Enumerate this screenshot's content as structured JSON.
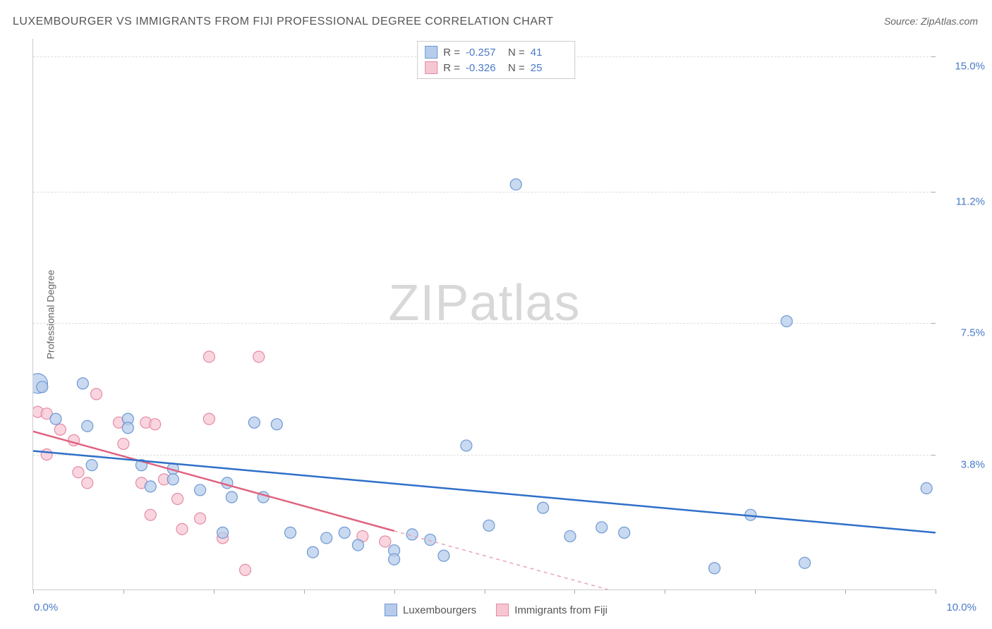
{
  "title": "LUXEMBOURGER VS IMMIGRANTS FROM FIJI PROFESSIONAL DEGREE CORRELATION CHART",
  "source_label": "Source: ",
  "source_name": "ZipAtlas.com",
  "y_axis_label": "Professional Degree",
  "watermark_a": "ZIP",
  "watermark_b": "atlas",
  "x_axis": {
    "min": 0.0,
    "max": 10.0,
    "left_label": "0.0%",
    "right_label": "10.0%",
    "tick_positions": [
      0,
      1,
      2,
      3,
      4,
      5,
      6,
      7,
      8,
      9,
      10
    ]
  },
  "y_axis": {
    "min": 0.0,
    "max": 15.5,
    "gridlines": [
      {
        "value": 3.8,
        "label": "3.8%"
      },
      {
        "value": 7.5,
        "label": "7.5%"
      },
      {
        "value": 11.2,
        "label": "11.2%"
      },
      {
        "value": 15.0,
        "label": "15.0%"
      }
    ]
  },
  "top_legend": [
    {
      "color_fill": "#b7cceb",
      "color_stroke": "#6d98d4",
      "r_label": "R =",
      "r_value": "-0.257",
      "n_label": "N =",
      "n_value": "41"
    },
    {
      "color_fill": "#f6c6d3",
      "color_stroke": "#e58aa4",
      "r_label": "R =",
      "r_value": "-0.326",
      "n_label": "N =",
      "n_value": "25"
    }
  ],
  "bottom_legend": [
    {
      "label": "Luxembourgers",
      "fill": "#b7cceb",
      "stroke": "#6d98d4"
    },
    {
      "label": "Immigrants from Fiji",
      "fill": "#f6c6d3",
      "stroke": "#e58aa4"
    }
  ],
  "series": {
    "blue": {
      "fill": "#b7cceb",
      "stroke": "#6d98d4",
      "opacity": 0.75,
      "points": [
        {
          "x": 0.05,
          "y": 5.8,
          "r": 14
        },
        {
          "x": 0.1,
          "y": 5.7,
          "r": 8
        },
        {
          "x": 0.55,
          "y": 5.8,
          "r": 8
        },
        {
          "x": 0.25,
          "y": 4.8,
          "r": 8
        },
        {
          "x": 0.6,
          "y": 4.6,
          "r": 8
        },
        {
          "x": 1.05,
          "y": 4.8,
          "r": 8
        },
        {
          "x": 1.05,
          "y": 4.55,
          "r": 8
        },
        {
          "x": 0.65,
          "y": 3.5,
          "r": 8
        },
        {
          "x": 1.2,
          "y": 3.5,
          "r": 8
        },
        {
          "x": 1.55,
          "y": 3.4,
          "r": 8
        },
        {
          "x": 1.55,
          "y": 3.1,
          "r": 8
        },
        {
          "x": 1.3,
          "y": 2.9,
          "r": 8
        },
        {
          "x": 1.85,
          "y": 2.8,
          "r": 8
        },
        {
          "x": 2.45,
          "y": 4.7,
          "r": 8
        },
        {
          "x": 2.7,
          "y": 4.65,
          "r": 8
        },
        {
          "x": 2.15,
          "y": 3.0,
          "r": 8
        },
        {
          "x": 2.2,
          "y": 2.6,
          "r": 8
        },
        {
          "x": 2.55,
          "y": 2.6,
          "r": 8
        },
        {
          "x": 2.85,
          "y": 1.6,
          "r": 8
        },
        {
          "x": 2.1,
          "y": 1.6,
          "r": 8
        },
        {
          "x": 3.25,
          "y": 1.45,
          "r": 8
        },
        {
          "x": 3.45,
          "y": 1.6,
          "r": 8
        },
        {
          "x": 3.1,
          "y": 1.05,
          "r": 8
        },
        {
          "x": 3.6,
          "y": 1.25,
          "r": 8
        },
        {
          "x": 4.0,
          "y": 1.1,
          "r": 8
        },
        {
          "x": 4.2,
          "y": 1.55,
          "r": 8
        },
        {
          "x": 4.4,
          "y": 1.4,
          "r": 8
        },
        {
          "x": 4.8,
          "y": 4.05,
          "r": 8
        },
        {
          "x": 5.35,
          "y": 11.4,
          "r": 8
        },
        {
          "x": 5.05,
          "y": 1.8,
          "r": 8
        },
        {
          "x": 5.65,
          "y": 2.3,
          "r": 8
        },
        {
          "x": 5.95,
          "y": 1.5,
          "r": 8
        },
        {
          "x": 6.3,
          "y": 1.75,
          "r": 8
        },
        {
          "x": 6.55,
          "y": 1.6,
          "r": 8
        },
        {
          "x": 7.55,
          "y": 0.6,
          "r": 8
        },
        {
          "x": 7.95,
          "y": 2.1,
          "r": 8
        },
        {
          "x": 8.35,
          "y": 7.55,
          "r": 8
        },
        {
          "x": 8.55,
          "y": 0.75,
          "r": 8
        },
        {
          "x": 9.9,
          "y": 2.85,
          "r": 8
        },
        {
          "x": 4.0,
          "y": 0.85,
          "r": 8
        },
        {
          "x": 4.55,
          "y": 0.95,
          "r": 8
        }
      ],
      "trend": {
        "x1": 0.0,
        "y1": 3.9,
        "x2": 10.0,
        "y2": 1.6,
        "stroke": "#2f6fc9",
        "width": 2.5
      }
    },
    "pink": {
      "fill": "#f6c6d3",
      "stroke": "#e58aa4",
      "opacity": 0.72,
      "points": [
        {
          "x": 0.05,
          "y": 5.0,
          "r": 8
        },
        {
          "x": 0.15,
          "y": 4.95,
          "r": 8
        },
        {
          "x": 0.3,
          "y": 4.5,
          "r": 8
        },
        {
          "x": 0.45,
          "y": 4.2,
          "r": 8
        },
        {
          "x": 0.15,
          "y": 3.8,
          "r": 8
        },
        {
          "x": 0.5,
          "y": 3.3,
          "r": 8
        },
        {
          "x": 0.6,
          "y": 3.0,
          "r": 8
        },
        {
          "x": 0.7,
          "y": 5.5,
          "r": 8
        },
        {
          "x": 0.95,
          "y": 4.7,
          "r": 8
        },
        {
          "x": 1.0,
          "y": 4.1,
          "r": 8
        },
        {
          "x": 1.25,
          "y": 4.7,
          "r": 8
        },
        {
          "x": 1.35,
          "y": 4.65,
          "r": 8
        },
        {
          "x": 1.2,
          "y": 3.0,
          "r": 8
        },
        {
          "x": 1.45,
          "y": 3.1,
          "r": 8
        },
        {
          "x": 1.3,
          "y": 2.1,
          "r": 8
        },
        {
          "x": 1.6,
          "y": 2.55,
          "r": 8
        },
        {
          "x": 1.65,
          "y": 1.7,
          "r": 8
        },
        {
          "x": 1.85,
          "y": 2.0,
          "r": 8
        },
        {
          "x": 1.95,
          "y": 6.55,
          "r": 8
        },
        {
          "x": 1.95,
          "y": 4.8,
          "r": 8
        },
        {
          "x": 2.1,
          "y": 1.45,
          "r": 8
        },
        {
          "x": 2.35,
          "y": 0.55,
          "r": 8
        },
        {
          "x": 2.5,
          "y": 6.55,
          "r": 8
        },
        {
          "x": 3.65,
          "y": 1.5,
          "r": 8
        },
        {
          "x": 3.9,
          "y": 1.35,
          "r": 8
        }
      ],
      "trend_solid": {
        "x1": 0.0,
        "y1": 4.45,
        "x2": 4.0,
        "y2": 1.65,
        "stroke": "#e0627f",
        "width": 2.5
      },
      "trend_dashed": {
        "x1": 4.0,
        "y1": 1.65,
        "x2": 7.3,
        "y2": -0.65,
        "stroke": "#e9a3b3",
        "width": 1.5
      }
    }
  }
}
